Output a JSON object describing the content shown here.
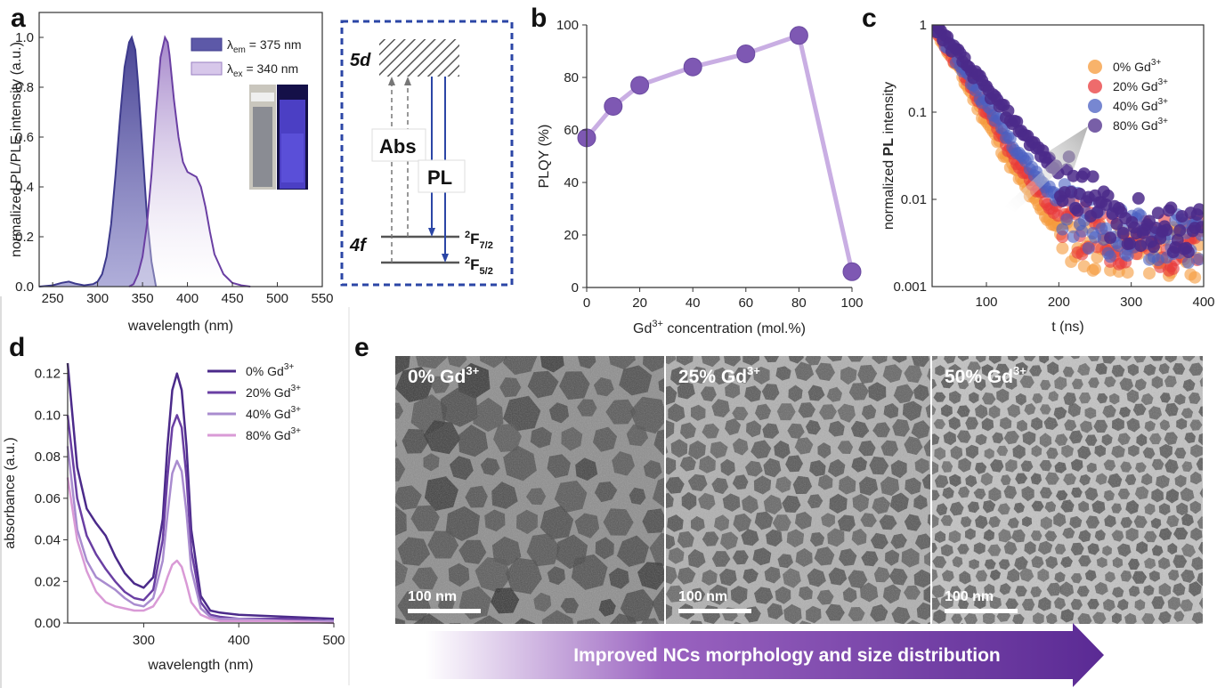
{
  "panel_labels": {
    "a": "a",
    "b": "b",
    "c": "c",
    "d": "d",
    "e": "e"
  },
  "colors": {
    "dark_purple": "#4b2a8a",
    "mid_purple": "#6a3fa3",
    "light_purple": "#a98ccf",
    "pink": "#d99ad6",
    "blue": "#4a5fc1",
    "orange": "#f59a3a",
    "red": "#e8393b",
    "diag_blue": "#2b46a6"
  },
  "chart_data": [
    {
      "id": "a",
      "type": "area",
      "xlabel": "wavelength (nm)",
      "ylabel": "normalized PL/PLE intensity (a.u.)",
      "xlim": [
        235,
        550
      ],
      "ylim": [
        0,
        1.1
      ],
      "xticks": [
        250,
        300,
        350,
        400,
        450,
        500,
        550
      ],
      "yticks": [
        0.0,
        0.2,
        0.4,
        0.6,
        0.8,
        1.0
      ],
      "legend": [
        {
          "prefix": "λ",
          "sub": "em",
          "rest": " = 375 nm"
        },
        {
          "prefix": "λ",
          "sub": "ex",
          "rest": " = 340 nm"
        }
      ],
      "series": [
        {
          "name": "λem = 375 nm",
          "x": [
            235,
            250,
            260,
            268,
            275,
            285,
            295,
            300,
            305,
            310,
            315,
            320,
            325,
            330,
            335,
            338,
            342,
            345,
            350,
            355,
            360,
            365
          ],
          "y": [
            0.0,
            0.005,
            0.015,
            0.02,
            0.012,
            0.005,
            0.01,
            0.02,
            0.05,
            0.12,
            0.25,
            0.45,
            0.68,
            0.88,
            0.98,
            1.0,
            0.95,
            0.82,
            0.55,
            0.28,
            0.1,
            0.0
          ]
        },
        {
          "name": "λex = 340 nm",
          "x": [
            335,
            340,
            345,
            350,
            355,
            360,
            365,
            370,
            375,
            378,
            380,
            385,
            390,
            395,
            400,
            405,
            410,
            415,
            420,
            425,
            430,
            440,
            450,
            460,
            470
          ],
          "y": [
            0.0,
            0.01,
            0.05,
            0.12,
            0.25,
            0.45,
            0.7,
            0.92,
            1.0,
            0.98,
            0.93,
            0.75,
            0.6,
            0.5,
            0.46,
            0.45,
            0.44,
            0.4,
            0.32,
            0.22,
            0.13,
            0.05,
            0.015,
            0.005,
            0.0
          ]
        }
      ],
      "diagram": {
        "upper": "5d",
        "lower": "4f",
        "abs": "Abs",
        "pl": "PL",
        "term1_sup": "2",
        "term1_main": "F",
        "term1_sub": "7/2",
        "term2_sup": "2",
        "term2_main": "F",
        "term2_sub": "5/2"
      }
    },
    {
      "id": "b",
      "type": "line",
      "xlabel_pre": "Gd",
      "xlabel_sup": "3+",
      "xlabel_post": " concentration (mol.%)",
      "ylabel": "PLQY (%)",
      "xlim": [
        0,
        100
      ],
      "ylim": [
        0,
        100
      ],
      "xticks": [
        0,
        20,
        40,
        60,
        80,
        100
      ],
      "yticks": [
        0,
        20,
        40,
        60,
        80,
        100
      ],
      "x": [
        0,
        10,
        20,
        40,
        60,
        80,
        100
      ],
      "y": [
        57,
        69,
        77,
        84,
        89,
        96,
        6
      ]
    },
    {
      "id": "c",
      "type": "scatter",
      "log_y": true,
      "xlabel": "t (ns)",
      "ylabel_pre": "normalized ",
      "ylabel_bold": "PL",
      "ylabel_post": " intensity",
      "xlim": [
        25,
        400
      ],
      "ylim": [
        0.001,
        1
      ],
      "xticks": [
        100,
        200,
        300,
        400
      ],
      "yticks": [
        {
          "v": 1,
          "label": "1"
        },
        {
          "v": 0.1,
          "label": "0.1"
        },
        {
          "v": 0.01,
          "label": "0.01"
        },
        {
          "v": 0.001,
          "label": "0.001"
        }
      ],
      "series": [
        {
          "name": "0% Gd",
          "sup": "3+",
          "color": "#f59a3a",
          "tau": 28,
          "floor": 0.0025
        },
        {
          "name": "20% Gd",
          "sup": "3+",
          "color": "#e8393b",
          "tau": 31,
          "floor": 0.003
        },
        {
          "name": "40% Gd",
          "sup": "3+",
          "color": "#4a5fc1",
          "tau": 34,
          "floor": 0.0035
        },
        {
          "name": "80% Gd",
          "sup": "3+",
          "color": "#4b2a8a",
          "tau": 42,
          "floor": 0.004
        }
      ]
    },
    {
      "id": "d",
      "type": "line",
      "xlabel": "wavelength (nm)",
      "ylabel": "absorbance (a.u.)",
      "xlim": [
        220,
        500
      ],
      "ylim": [
        0,
        0.125
      ],
      "xticks": [
        300,
        400,
        500
      ],
      "yticks": [
        0.0,
        0.02,
        0.04,
        0.06,
        0.08,
        0.1,
        0.12
      ],
      "x": [
        220,
        230,
        240,
        250,
        260,
        270,
        280,
        290,
        300,
        310,
        320,
        325,
        330,
        335,
        340,
        345,
        350,
        360,
        370,
        380,
        400,
        450,
        500
      ],
      "series": [
        {
          "name": "0% Gd",
          "sup": "3+",
          "color": "#4b2a8a",
          "y": [
            0.125,
            0.075,
            0.055,
            0.048,
            0.042,
            0.032,
            0.024,
            0.019,
            0.017,
            0.022,
            0.05,
            0.085,
            0.112,
            0.12,
            0.112,
            0.085,
            0.045,
            0.013,
            0.006,
            0.005,
            0.004,
            0.003,
            0.002
          ]
        },
        {
          "name": "20% Gd",
          "sup": "3+",
          "color": "#6a3fa3",
          "y": [
            0.1,
            0.06,
            0.042,
            0.033,
            0.026,
            0.02,
            0.015,
            0.012,
            0.011,
            0.016,
            0.04,
            0.07,
            0.094,
            0.1,
            0.094,
            0.07,
            0.035,
            0.01,
            0.004,
            0.003,
            0.002,
            0.002,
            0.001
          ]
        },
        {
          "name": "40% Gd",
          "sup": "3+",
          "color": "#a98ccf",
          "y": [
            0.085,
            0.045,
            0.03,
            0.022,
            0.019,
            0.016,
            0.012,
            0.009,
            0.008,
            0.012,
            0.03,
            0.052,
            0.072,
            0.078,
            0.073,
            0.053,
            0.026,
            0.007,
            0.003,
            0.002,
            0.002,
            0.001,
            0.001
          ]
        },
        {
          "name": "80% Gd",
          "sup": "3+",
          "color": "#d99ad6",
          "y": [
            0.07,
            0.04,
            0.025,
            0.015,
            0.01,
            0.008,
            0.007,
            0.006,
            0.006,
            0.008,
            0.015,
            0.022,
            0.028,
            0.03,
            0.027,
            0.019,
            0.01,
            0.004,
            0.002,
            0.001,
            0.001,
            0.001,
            0.0
          ]
        }
      ]
    }
  ],
  "tem": {
    "images": [
      {
        "label": "0% Gd",
        "sup": "3+",
        "scale": "100 nm"
      },
      {
        "label": "25% Gd",
        "sup": "3+",
        "scale": "100 nm"
      },
      {
        "label": "50% Gd",
        "sup": "3+",
        "scale": "100 nm"
      }
    ],
    "arrow_text": "Improved NCs morphology and size distribution"
  }
}
